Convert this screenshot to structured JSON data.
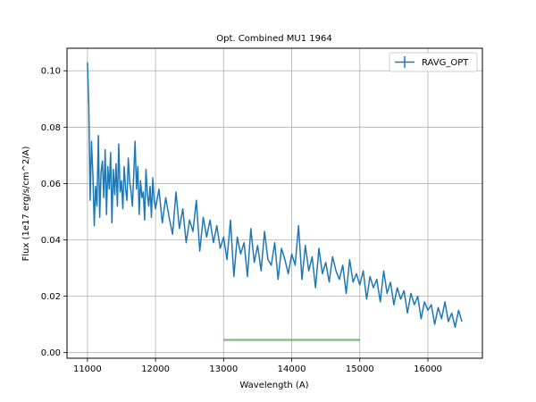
{
  "chart_data": {
    "type": "line",
    "title": "Opt. Combined MU1 1964",
    "xlabel": "Wavelength (A)",
    "ylabel": "Flux (1e17 erg/s/cm^2/A)",
    "xlim": [
      10700,
      16800
    ],
    "ylim": [
      -0.002,
      0.108
    ],
    "xticks": [
      11000,
      12000,
      13000,
      14000,
      15000,
      16000
    ],
    "xtick_labels": [
      "11000",
      "12000",
      "13000",
      "14000",
      "15000",
      "16000"
    ],
    "yticks": [
      0.0,
      0.02,
      0.04,
      0.06,
      0.08,
      0.1
    ],
    "ytick_labels": [
      "0.00",
      "0.02",
      "0.04",
      "0.06",
      "0.08",
      "0.10"
    ],
    "grid": true,
    "legend_position": "top-right",
    "series": [
      {
        "name": "RAVG_OPT",
        "color": "#1f77b4",
        "style": "errorbar",
        "x": [
          11000,
          11020,
          11040,
          11060,
          11080,
          11100,
          11120,
          11140,
          11160,
          11180,
          11200,
          11220,
          11240,
          11260,
          11280,
          11300,
          11320,
          11340,
          11360,
          11380,
          11400,
          11420,
          11440,
          11460,
          11480,
          11500,
          11520,
          11540,
          11560,
          11580,
          11600,
          11620,
          11640,
          11660,
          11680,
          11700,
          11720,
          11740,
          11760,
          11780,
          11800,
          11820,
          11840,
          11860,
          11880,
          11900,
          11920,
          11940,
          11960,
          11980,
          12000,
          12050,
          12100,
          12150,
          12200,
          12250,
          12300,
          12350,
          12400,
          12450,
          12500,
          12550,
          12600,
          12650,
          12700,
          12750,
          12800,
          12850,
          12900,
          12950,
          13000,
          13050,
          13100,
          13150,
          13200,
          13250,
          13300,
          13350,
          13400,
          13450,
          13500,
          13550,
          13600,
          13650,
          13700,
          13750,
          13800,
          13850,
          13900,
          13950,
          14000,
          14050,
          14100,
          14150,
          14200,
          14250,
          14300,
          14350,
          14400,
          14450,
          14500,
          14550,
          14600,
          14650,
          14700,
          14750,
          14800,
          14850,
          14900,
          14950,
          15000,
          15050,
          15100,
          15150,
          15200,
          15250,
          15300,
          15350,
          15400,
          15450,
          15500,
          15550,
          15600,
          15650,
          15700,
          15750,
          15800,
          15850,
          15900,
          15950,
          16000,
          16050,
          16100,
          16150,
          16200,
          16250,
          16300,
          16350,
          16400,
          16450,
          16500
        ],
        "y": [
          0.103,
          0.088,
          0.054,
          0.075,
          0.063,
          0.045,
          0.059,
          0.052,
          0.077,
          0.048,
          0.064,
          0.068,
          0.055,
          0.072,
          0.049,
          0.066,
          0.058,
          0.071,
          0.046,
          0.065,
          0.056,
          0.067,
          0.052,
          0.074,
          0.057,
          0.061,
          0.051,
          0.066,
          0.058,
          0.054,
          0.069,
          0.061,
          0.057,
          0.052,
          0.063,
          0.075,
          0.058,
          0.066,
          0.049,
          0.061,
          0.055,
          0.057,
          0.047,
          0.065,
          0.056,
          0.052,
          0.059,
          0.048,
          0.062,
          0.054,
          0.051,
          0.058,
          0.046,
          0.055,
          0.048,
          0.042,
          0.057,
          0.044,
          0.051,
          0.039,
          0.047,
          0.043,
          0.054,
          0.036,
          0.048,
          0.041,
          0.047,
          0.039,
          0.045,
          0.037,
          0.041,
          0.033,
          0.047,
          0.027,
          0.041,
          0.035,
          0.039,
          0.027,
          0.044,
          0.032,
          0.038,
          0.029,
          0.043,
          0.033,
          0.031,
          0.039,
          0.026,
          0.037,
          0.033,
          0.028,
          0.035,
          0.031,
          0.045,
          0.026,
          0.038,
          0.029,
          0.034,
          0.023,
          0.037,
          0.028,
          0.032,
          0.025,
          0.034,
          0.029,
          0.026,
          0.031,
          0.021,
          0.033,
          0.025,
          0.028,
          0.024,
          0.029,
          0.019,
          0.027,
          0.023,
          0.026,
          0.018,
          0.029,
          0.021,
          0.025,
          0.017,
          0.023,
          0.019,
          0.022,
          0.014,
          0.021,
          0.017,
          0.02,
          0.012,
          0.018,
          0.015,
          0.017,
          0.01,
          0.016,
          0.012,
          0.018,
          0.011,
          0.014,
          0.009,
          0.015,
          0.011
        ]
      },
      {
        "color": "#2ca02c",
        "style": "line",
        "x": [
          13000,
          15000
        ],
        "y": [
          0.0045,
          0.0045
        ]
      }
    ]
  }
}
